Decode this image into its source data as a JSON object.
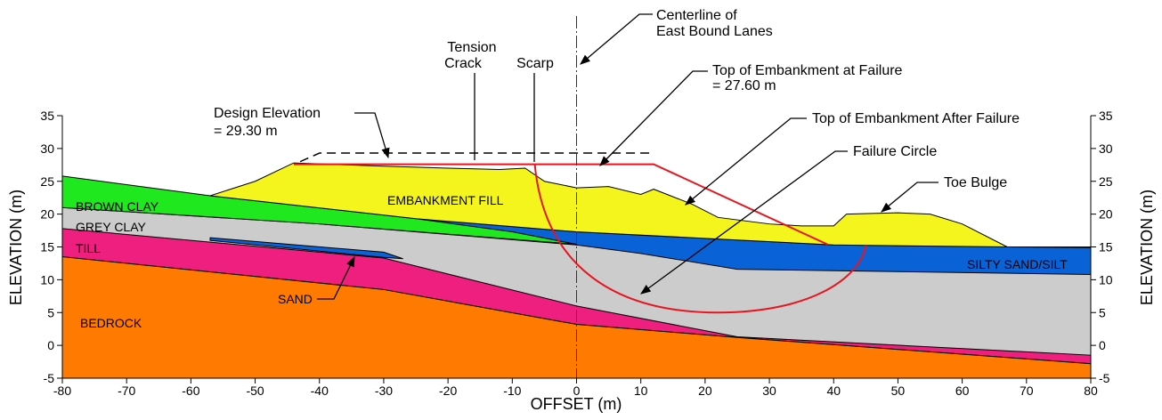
{
  "axes": {
    "x_label": "OFFSET (m)",
    "y_label": "ELEVATION (m)",
    "xlim": [
      -80,
      80
    ],
    "ylim": [
      -5,
      35
    ],
    "xticks": [
      -80,
      -70,
      -60,
      -50,
      -40,
      -30,
      -20,
      -10,
      0,
      10,
      20,
      30,
      40,
      50,
      60,
      70,
      80
    ],
    "yticks": [
      -5,
      0,
      5,
      10,
      15,
      20,
      25,
      30,
      35
    ]
  },
  "layers": {
    "brown_clay": "BROWN CLAY",
    "grey_clay": "GREY CLAY",
    "till": "TILL",
    "sand": "SAND",
    "bedrock": "BEDROCK",
    "fill": "EMBANKMENT FILL",
    "silty_sand": "SILTY SAND/SILT"
  },
  "annotations": {
    "centerline": [
      "Centerline of",
      "East Bound Lanes"
    ],
    "tension_crack": [
      "Tension",
      "Crack"
    ],
    "scarp": "Scarp",
    "top_failure": [
      "Top of Embankment at Failure",
      "= 27.60 m"
    ],
    "design_elevation": [
      "Design Elevation",
      "= 29.30 m"
    ],
    "top_after": "Top of Embankment After Failure",
    "failure_circle": "Failure Circle",
    "toe_bulge": "Toe Bulge"
  }
}
